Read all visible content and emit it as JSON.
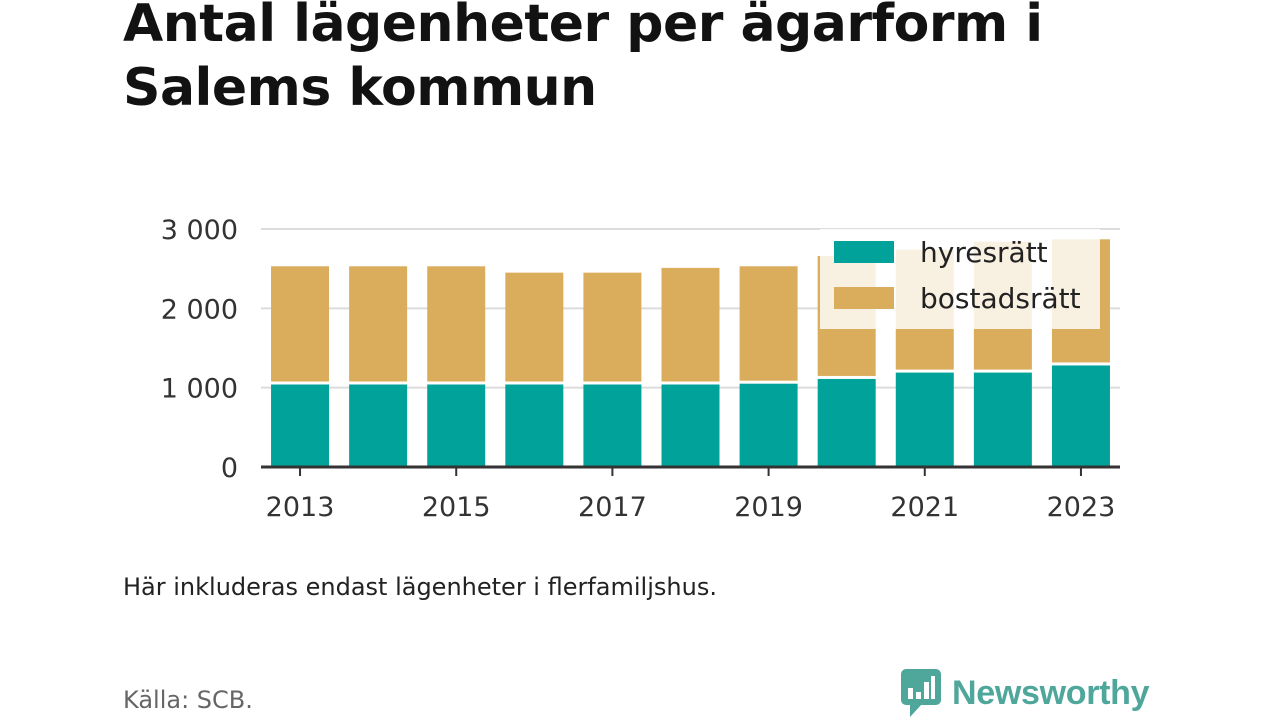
{
  "title": "Antal lägenheter per ägarform i Salems kommun",
  "note": "Här inkluderas endast lägenheter i flerfamiljshus.",
  "source": "Källa: SCB.",
  "brand": "Newsworthy",
  "colors": {
    "hyresratt": "#00a29a",
    "bostadsratt": "#d9ad5b",
    "brand": "#4fa79c"
  },
  "chart_data": {
    "type": "bar",
    "stacked": true,
    "x": [
      2013,
      2014,
      2015,
      2016,
      2017,
      2018,
      2019,
      2020,
      2021,
      2022,
      2023
    ],
    "x_tick_labels": [
      "2013",
      "2015",
      "2017",
      "2019",
      "2021",
      "2023"
    ],
    "series": [
      {
        "name": "hyresrätt",
        "values": [
          1040,
          1040,
          1040,
          1040,
          1040,
          1040,
          1050,
          1110,
          1190,
          1190,
          1280
        ]
      },
      {
        "name": "bostadsrätt",
        "values": [
          1490,
          1490,
          1490,
          1410,
          1410,
          1470,
          1480,
          1550,
          1550,
          1650,
          1590
        ]
      }
    ],
    "y_ticks": [
      0,
      1000,
      2000,
      3000
    ],
    "y_tick_labels": [
      "0",
      "1 000",
      "2 000",
      "3 000"
    ],
    "ylim": [
      0,
      3000
    ],
    "grid": true,
    "legend_position": "top-right"
  }
}
